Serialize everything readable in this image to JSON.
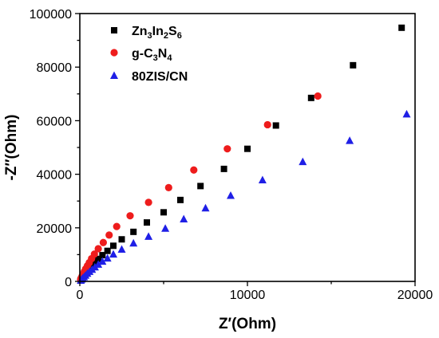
{
  "chart_data": {
    "type": "scatter",
    "xlabel": "Z′(Ohm)",
    "ylabel": "-Z″(Ohm)",
    "xlim": [
      0,
      20000
    ],
    "ylim": [
      0,
      100000
    ],
    "xticks": [
      "0",
      "10000",
      "20000"
    ],
    "yticks": [
      "0",
      "20000",
      "40000",
      "60000",
      "80000",
      "100000"
    ],
    "legend_position": "top-left",
    "series": [
      {
        "name": "Zn3In2S6",
        "label_parts": [
          [
            "Zn",
            "n"
          ],
          [
            "3",
            "s"
          ],
          [
            "In",
            "n"
          ],
          [
            "2",
            "s"
          ],
          [
            "S",
            "n"
          ],
          [
            "6",
            "s"
          ]
        ],
        "marker": "square",
        "color": "#000000",
        "x": [
          60,
          100,
          150,
          220,
          300,
          400,
          500,
          620,
          750,
          900,
          1100,
          1350,
          1650,
          2000,
          2500,
          3200,
          4000,
          5000,
          6000,
          7200,
          8600,
          10000,
          11700,
          13800,
          16300,
          19200
        ],
        "y": [
          600,
          1000,
          1500,
          2100,
          2800,
          3600,
          4400,
          5300,
          6200,
          7200,
          8400,
          9800,
          11400,
          13300,
          15700,
          18500,
          22000,
          25800,
          30400,
          35600,
          42000,
          49500,
          58200,
          68500,
          80700,
          94700
        ]
      },
      {
        "name": "g-C3N4",
        "label_parts": [
          [
            "g-C",
            "n"
          ],
          [
            "3",
            "s"
          ],
          [
            "N",
            "n"
          ],
          [
            "4",
            "s"
          ]
        ],
        "marker": "circle",
        "color": "#ee1c1c",
        "x": [
          50,
          90,
          140,
          200,
          270,
          350,
          450,
          560,
          700,
          870,
          1100,
          1400,
          1750,
          2200,
          3000,
          4100,
          5300,
          6800,
          8800,
          11200,
          14200
        ],
        "y": [
          700,
          1300,
          2000,
          2800,
          3700,
          4700,
          5800,
          7000,
          8500,
          10200,
          12200,
          14500,
          17300,
          20500,
          24500,
          29500,
          35000,
          41600,
          49500,
          58500,
          69200
        ]
      },
      {
        "name": "80ZIS/CN",
        "label_parts": [
          [
            "80ZIS/CN",
            "n"
          ]
        ],
        "marker": "triangle",
        "color": "#1f1fe6",
        "x": [
          60,
          110,
          170,
          250,
          340,
          450,
          580,
          730,
          900,
          1100,
          1350,
          1650,
          2000,
          2500,
          3200,
          4100,
          5100,
          6200,
          7500,
          9000,
          10900,
          13300,
          16100,
          19500
        ],
        "y": [
          300,
          700,
          1100,
          1600,
          2200,
          2900,
          3600,
          4400,
          5300,
          6300,
          7400,
          8600,
          10100,
          11900,
          14200,
          16700,
          19700,
          23200,
          27300,
          32000,
          37800,
          44600,
          52500,
          62400
        ]
      }
    ]
  }
}
